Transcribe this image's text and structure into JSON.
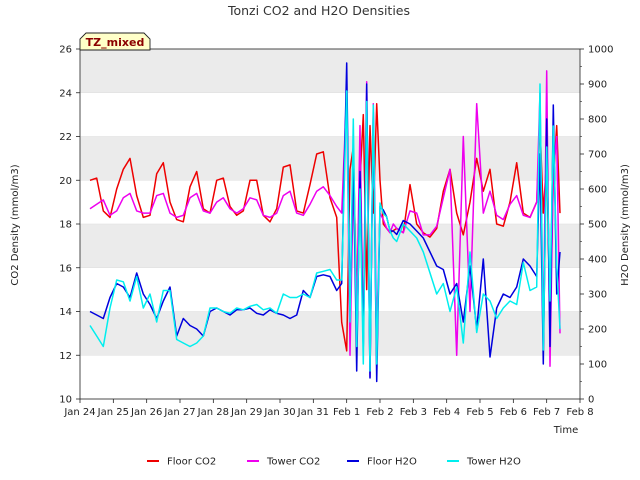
{
  "chart_data": {
    "type": "line",
    "title": "Tonzi CO2 and H2O Densities",
    "badge": "TZ_mixed",
    "xlabel": "Time",
    "ylabel": "CO2 Density (mmol/m3)",
    "y2label": "H2O Density (mmol/m3)",
    "x_ticks": [
      "Jan 24",
      "Jan 25",
      "Jan 26",
      "Jan 27",
      "Jan 28",
      "Jan 29",
      "Jan 30",
      "Jan 31",
      "Feb 1",
      "Feb 2",
      "Feb 3",
      "Feb 4",
      "Feb 5",
      "Feb 6",
      "Feb 7",
      "Feb 8"
    ],
    "xlim": [
      0,
      15
    ],
    "ylim": [
      10,
      26
    ],
    "y_ticks": [
      "10",
      "12",
      "14",
      "16",
      "18",
      "20",
      "22",
      "24",
      "26"
    ],
    "y2lim": [
      0,
      1000
    ],
    "y2_ticks": [
      "0",
      "100",
      "200",
      "300",
      "400",
      "500",
      "600",
      "700",
      "800",
      "900",
      "1000"
    ],
    "grid": "horizontal bands",
    "legend_position": "bottom",
    "series": [
      {
        "name": "Floor CO2",
        "axis": "left",
        "color": "#ee0000",
        "x": [
          0.3,
          0.5,
          0.7,
          0.9,
          1.1,
          1.3,
          1.5,
          1.7,
          1.9,
          2.1,
          2.3,
          2.5,
          2.7,
          2.9,
          3.1,
          3.3,
          3.5,
          3.7,
          3.9,
          4.1,
          4.3,
          4.5,
          4.7,
          4.9,
          5.1,
          5.3,
          5.5,
          5.7,
          5.9,
          6.1,
          6.3,
          6.5,
          6.7,
          6.9,
          7.1,
          7.3,
          7.5,
          7.7,
          7.85,
          8.0,
          8.1,
          8.2,
          8.3,
          8.4,
          8.5,
          8.6,
          8.7,
          8.8,
          8.9,
          9.0,
          9.1,
          9.2,
          9.3,
          9.4,
          9.5,
          9.7,
          9.9,
          10.1,
          10.3,
          10.5,
          10.7,
          10.9,
          11.1,
          11.3,
          11.5,
          11.7,
          11.9,
          12.1,
          12.3,
          12.5,
          12.7,
          12.9,
          13.1,
          13.3,
          13.5,
          13.7,
          13.8,
          13.9,
          14.0,
          14.1,
          14.2,
          14.3,
          14.4
        ],
        "values": [
          20.0,
          20.1,
          18.6,
          18.3,
          19.6,
          20.5,
          21.0,
          19.3,
          18.3,
          18.4,
          20.3,
          20.8,
          19.0,
          18.2,
          18.1,
          19.7,
          20.4,
          18.7,
          18.5,
          20.0,
          20.1,
          18.8,
          18.4,
          18.6,
          20.0,
          20.0,
          18.4,
          18.1,
          18.7,
          20.6,
          20.7,
          18.6,
          18.5,
          19.8,
          21.2,
          21.3,
          19.2,
          18.3,
          13.5,
          12.2,
          20.5,
          21.5,
          14.5,
          20.0,
          23.0,
          15.0,
          22.5,
          18.5,
          23.5,
          20.0,
          18.0,
          17.8,
          17.6,
          17.7,
          17.8,
          17.6,
          19.8,
          18.0,
          17.6,
          17.4,
          17.8,
          19.5,
          20.5,
          18.5,
          17.5,
          19.0,
          21.0,
          19.5,
          20.5,
          18.0,
          17.9,
          19.0,
          20.8,
          18.5,
          18.3,
          19.0,
          22.5,
          18.5,
          21.0,
          13.5,
          20.0,
          22.5,
          18.5
        ]
      },
      {
        "name": "Tower CO2",
        "axis": "left",
        "color": "#ee00ee",
        "x": [
          0.3,
          0.5,
          0.7,
          0.9,
          1.1,
          1.3,
          1.5,
          1.7,
          1.9,
          2.1,
          2.3,
          2.5,
          2.7,
          2.9,
          3.1,
          3.3,
          3.5,
          3.7,
          3.9,
          4.1,
          4.3,
          4.5,
          4.7,
          4.9,
          5.1,
          5.3,
          5.5,
          5.7,
          5.9,
          6.1,
          6.3,
          6.5,
          6.7,
          6.9,
          7.1,
          7.3,
          7.5,
          7.7,
          7.85,
          8.0,
          8.1,
          8.2,
          8.3,
          8.4,
          8.5,
          8.6,
          8.7,
          8.8,
          8.9,
          9.0,
          9.1,
          9.2,
          9.3,
          9.4,
          9.5,
          9.7,
          9.9,
          10.1,
          10.3,
          10.5,
          10.7,
          10.9,
          11.1,
          11.3,
          11.5,
          11.7,
          11.9,
          12.1,
          12.3,
          12.5,
          12.7,
          12.9,
          13.1,
          13.3,
          13.5,
          13.7,
          13.8,
          13.9,
          14.0,
          14.1,
          14.2,
          14.3,
          14.4
        ],
        "values": [
          18.7,
          18.9,
          19.1,
          18.4,
          18.6,
          19.2,
          19.4,
          18.6,
          18.5,
          18.5,
          19.3,
          19.4,
          18.5,
          18.3,
          18.4,
          19.2,
          19.4,
          18.6,
          18.5,
          19.0,
          19.2,
          18.7,
          18.5,
          18.7,
          19.2,
          19.1,
          18.4,
          18.3,
          18.5,
          19.3,
          19.5,
          18.5,
          18.4,
          18.9,
          19.5,
          19.7,
          19.3,
          18.8,
          18.5,
          24.0,
          12.0,
          20.0,
          14.0,
          22.5,
          12.5,
          24.5,
          11.0,
          23.5,
          13.0,
          18.5,
          18.2,
          17.8,
          17.6,
          18.0,
          17.8,
          17.6,
          18.6,
          18.5,
          17.5,
          17.5,
          17.9,
          19.2,
          20.5,
          12.0,
          22.0,
          14.0,
          23.5,
          18.5,
          19.5,
          18.4,
          18.2,
          18.9,
          19.3,
          18.4,
          18.3,
          19.0,
          24.0,
          12.5,
          25.0,
          11.5,
          20.5,
          22.0,
          13.0
        ]
      },
      {
        "name": "Floor H2O",
        "axis": "right",
        "color": "#0000dd",
        "x": [
          0.3,
          0.5,
          0.7,
          0.9,
          1.1,
          1.3,
          1.5,
          1.7,
          1.9,
          2.1,
          2.3,
          2.5,
          2.7,
          2.9,
          3.1,
          3.3,
          3.5,
          3.7,
          3.9,
          4.1,
          4.3,
          4.5,
          4.7,
          4.9,
          5.1,
          5.3,
          5.5,
          5.7,
          5.9,
          6.1,
          6.3,
          6.5,
          6.7,
          6.9,
          7.1,
          7.3,
          7.5,
          7.7,
          7.85,
          8.0,
          8.1,
          8.2,
          8.3,
          8.4,
          8.5,
          8.6,
          8.7,
          8.8,
          8.9,
          9.0,
          9.1,
          9.2,
          9.3,
          9.4,
          9.5,
          9.7,
          9.9,
          10.1,
          10.3,
          10.5,
          10.7,
          10.9,
          11.1,
          11.3,
          11.5,
          11.7,
          11.9,
          12.1,
          12.3,
          12.5,
          12.7,
          12.9,
          13.1,
          13.3,
          13.5,
          13.7,
          13.8,
          13.9,
          14.0,
          14.1,
          14.2,
          14.3,
          14.4
        ],
        "values": [
          250,
          240,
          230,
          290,
          330,
          320,
          290,
          360,
          300,
          270,
          230,
          280,
          320,
          180,
          230,
          210,
          200,
          180,
          250,
          260,
          250,
          240,
          255,
          255,
          260,
          245,
          240,
          255,
          245,
          240,
          230,
          240,
          310,
          290,
          350,
          355,
          350,
          310,
          330,
          960,
          250,
          700,
          80,
          650,
          150,
          900,
          60,
          820,
          50,
          550,
          540,
          520,
          480,
          480,
          470,
          510,
          500,
          480,
          460,
          420,
          380,
          370,
          300,
          330,
          220,
          380,
          200,
          400,
          120,
          260,
          300,
          290,
          320,
          400,
          380,
          350,
          700,
          100,
          800,
          150,
          840,
          300,
          420
        ]
      },
      {
        "name": "Tower H2O",
        "axis": "right",
        "color": "#00eeee",
        "x": [
          0.3,
          0.5,
          0.7,
          0.9,
          1.1,
          1.3,
          1.5,
          1.7,
          1.9,
          2.1,
          2.3,
          2.5,
          2.7,
          2.9,
          3.1,
          3.3,
          3.5,
          3.7,
          3.9,
          4.1,
          4.3,
          4.5,
          4.7,
          4.9,
          5.1,
          5.3,
          5.5,
          5.7,
          5.9,
          6.1,
          6.3,
          6.5,
          6.7,
          6.9,
          7.1,
          7.3,
          7.5,
          7.7,
          7.85,
          8.0,
          8.1,
          8.2,
          8.3,
          8.4,
          8.5,
          8.6,
          8.7,
          8.8,
          8.9,
          9.0,
          9.1,
          9.2,
          9.3,
          9.4,
          9.5,
          9.7,
          9.9,
          10.1,
          10.3,
          10.5,
          10.7,
          10.9,
          11.1,
          11.3,
          11.5,
          11.7,
          11.9,
          12.1,
          12.3,
          12.5,
          12.7,
          12.9,
          13.1,
          13.3,
          13.5,
          13.7,
          13.8,
          13.9,
          14.0,
          14.1,
          14.2,
          14.3,
          14.4
        ],
        "values": [
          210,
          180,
          150,
          260,
          340,
          335,
          280,
          350,
          260,
          300,
          220,
          310,
          310,
          170,
          160,
          150,
          160,
          180,
          260,
          260,
          250,
          245,
          260,
          255,
          265,
          270,
          255,
          260,
          245,
          300,
          290,
          290,
          300,
          290,
          360,
          365,
          370,
          340,
          340,
          880,
          220,
          800,
          150,
          600,
          100,
          850,
          80,
          840,
          100,
          560,
          530,
          520,
          480,
          460,
          450,
          500,
          480,
          460,
          420,
          360,
          300,
          330,
          250,
          320,
          160,
          420,
          190,
          300,
          280,
          230,
          260,
          280,
          270,
          390,
          310,
          320,
          900,
          140,
          720,
          280,
          780,
          380,
          200
        ]
      }
    ]
  }
}
